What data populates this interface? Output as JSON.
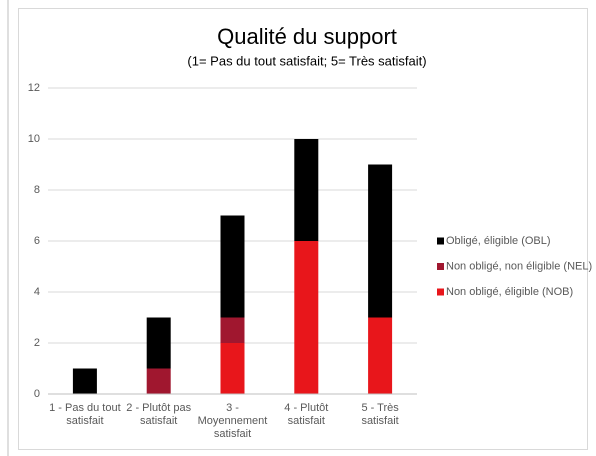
{
  "chart_data": {
    "type": "bar",
    "stacked": true,
    "title": "Qualité du support",
    "subtitle": "(1= Pas du tout satisfait; 5= Très satisfait)",
    "categories": [
      "1 - Pas du tout satisfait",
      "2 - Plutôt pas satisfait",
      "3 - Moyennement satisfait",
      "4 - Plutôt satisfait",
      "5 - Très satisfait"
    ],
    "series": [
      {
        "name": "Non obligé, éligible (NOB)",
        "color": "#e8161b",
        "values": [
          0,
          0,
          2,
          6,
          3
        ]
      },
      {
        "name": "Non obligé, non éligible (NEL)",
        "color": "#a0172f",
        "values": [
          0,
          1,
          1,
          0,
          0
        ]
      },
      {
        "name": "Obligé, éligible (OBL)",
        "color": "#000000",
        "values": [
          1,
          2,
          4,
          4,
          6
        ]
      }
    ],
    "ylim": [
      0,
      12
    ],
    "yticks": [
      0,
      2,
      4,
      6,
      8,
      10,
      12
    ],
    "grid": true,
    "legend": "right"
  }
}
